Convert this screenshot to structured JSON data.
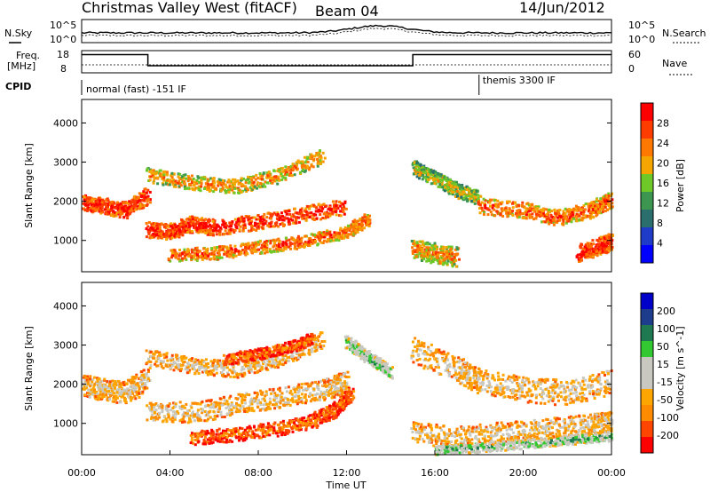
{
  "header": {
    "title": "Christmas Valley West (fitACF)",
    "beam": "Beam 04",
    "date": "14/Jun/2012"
  },
  "noise_panel": {
    "left_label": "N.Sky",
    "right_label": "N.Search",
    "left_ticks": [
      "10^5",
      "10^0"
    ],
    "right_ticks": [
      "10^5",
      "10^0"
    ]
  },
  "freq_panel": {
    "left_label_1": "Freq.",
    "left_label_2": "[MHz]",
    "right_label": "Nave",
    "left_ticks": [
      "18",
      "8"
    ],
    "right_ticks": [
      "60",
      "0"
    ],
    "freq_segments": [
      {
        "start": 0.0,
        "end": 3.0,
        "value": 0.82
      },
      {
        "start": 3.0,
        "end": 15.0,
        "value": 0.32
      },
      {
        "start": 15.0,
        "end": 24.0,
        "value": 0.82
      }
    ]
  },
  "cpid": {
    "label": "CPID",
    "mode1": "normal (fast) -151 IF",
    "mode2": "themis 3300 IF",
    "mode2_start": 18.0
  },
  "colors": {
    "power_scale": [
      "#0000ff",
      "#1e3cc8",
      "#2a6e6e",
      "#3c9650",
      "#6ec828",
      "#f5a500",
      "#ff7800",
      "#ff3c00",
      "#ff0000"
    ],
    "velocity_scale": [
      "#ff0000",
      "#ff4600",
      "#ff8c00",
      "#ffa500",
      "#c8c8c0",
      "#c8c8c0",
      "#32c832",
      "#1e7850",
      "#1e3c8c",
      "#0000c8"
    ]
  },
  "chart_data": [
    {
      "type": "heatmap",
      "panel": "power",
      "xlabel": "",
      "ylabel": "Slant Range [km]",
      "xlim": [
        0,
        24
      ],
      "ylim": [
        200,
        4600
      ],
      "yticks": [
        "1000",
        "2000",
        "3000",
        "4000"
      ],
      "colorbar": {
        "label": "Power [dB]",
        "ticks": [
          "28",
          "24",
          "20",
          "16",
          "12",
          "8",
          "4"
        ]
      },
      "echo_bands": [
        {
          "x": [
            0,
            1,
            2,
            3
          ],
          "y": [
            2000,
            1900,
            1800,
            2200
          ],
          "width": 200,
          "level": 8
        },
        {
          "x": [
            3,
            5,
            7,
            9,
            11
          ],
          "y": [
            2700,
            2500,
            2400,
            2700,
            3200
          ],
          "width": 180,
          "level": 6
        },
        {
          "x": [
            3,
            4,
            5,
            6,
            8,
            10,
            12
          ],
          "y": [
            1300,
            1250,
            1450,
            1350,
            1500,
            1700,
            1900
          ],
          "width": 200,
          "level": 8
        },
        {
          "x": [
            4,
            6,
            8,
            10,
            12,
            13
          ],
          "y": [
            650,
            700,
            850,
            1000,
            1250,
            1600
          ],
          "width": 160,
          "level": 7
        },
        {
          "x": [
            15,
            16,
            17,
            18
          ],
          "y": [
            2900,
            2600,
            2300,
            2100
          ],
          "width": 180,
          "level": 5
        },
        {
          "x": [
            18,
            20,
            21.5,
            23,
            24
          ],
          "y": [
            1900,
            1800,
            1600,
            1800,
            2100
          ],
          "width": 200,
          "level": 7
        },
        {
          "x": [
            15,
            16,
            17
          ],
          "y": [
            800,
            700,
            600
          ],
          "width": 250,
          "level": 6
        },
        {
          "x": [
            22.5,
            23.5,
            24
          ],
          "y": [
            700,
            900,
            1000
          ],
          "width": 220,
          "level": 8
        }
      ]
    },
    {
      "type": "heatmap",
      "panel": "velocity",
      "xlabel": "Time UT",
      "ylabel": "Slant Range [km]",
      "xlim": [
        0,
        24
      ],
      "ylim": [
        200,
        4600
      ],
      "xticks": [
        "00:00",
        "04:00",
        "08:00",
        "12:00",
        "16:00",
        "20:00",
        "00:00"
      ],
      "yticks": [
        "1000",
        "2000",
        "3000",
        "4000"
      ],
      "colorbar": {
        "label": "Velocity [m s^-1]",
        "ticks": [
          "200",
          "100",
          "50",
          "15",
          "-15",
          "-50",
          "-100",
          "-200"
        ]
      },
      "echo_bands": [
        {
          "x": [
            0,
            1,
            2,
            3
          ],
          "y": [
            2000,
            1900,
            1800,
            2200
          ],
          "width": 280,
          "level": 4
        },
        {
          "x": [
            3,
            5,
            7,
            9,
            11
          ],
          "y": [
            2700,
            2500,
            2400,
            2700,
            3200
          ],
          "width": 200,
          "level": 4
        },
        {
          "x": [
            6.5,
            8,
            9.5,
            10.5
          ],
          "y": [
            2650,
            2800,
            3000,
            3200
          ],
          "width": 140,
          "level": 2
        },
        {
          "x": [
            3,
            5,
            7,
            9,
            11,
            12
          ],
          "y": [
            1350,
            1300,
            1500,
            1700,
            1900,
            2100
          ],
          "width": 260,
          "level": 4
        },
        {
          "x": [
            5,
            7,
            9,
            10.5,
            11.5,
            12.2
          ],
          "y": [
            650,
            750,
            900,
            1100,
            1400,
            1800
          ],
          "width": 180,
          "level": 2
        },
        {
          "x": [
            12,
            13,
            14
          ],
          "y": [
            3100,
            2700,
            2300
          ],
          "width": 150,
          "level": 6
        },
        {
          "x": [
            15,
            17,
            18,
            20,
            22,
            24
          ],
          "y": [
            2900,
            2400,
            2100,
            1900,
            1800,
            2100
          ],
          "width": 320,
          "level": 4
        },
        {
          "x": [
            15,
            17,
            19,
            21,
            23,
            24
          ],
          "y": [
            800,
            700,
            800,
            900,
            1000,
            1100
          ],
          "width": 260,
          "level": 4
        },
        {
          "x": [
            16,
            18,
            20,
            22,
            24
          ],
          "y": [
            350,
            400,
            500,
            600,
            700
          ],
          "width": 120,
          "level": 6
        }
      ]
    }
  ]
}
